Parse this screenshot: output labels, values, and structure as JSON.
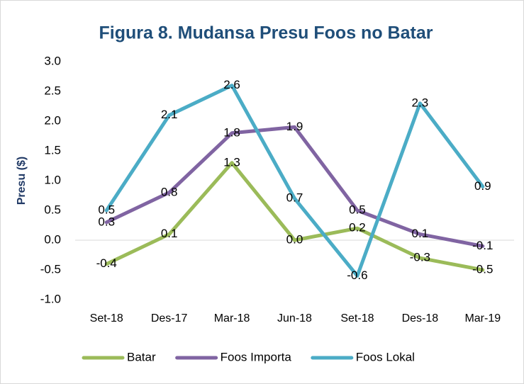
{
  "chart_data": {
    "type": "line",
    "title": "Figura 8. Mudansa Presu Foos no Batar",
    "y_label": "Presu ($)",
    "categories": [
      "Set-18",
      "Des-17",
      "Mar-18",
      "Jun-18",
      "Set-18",
      "Des-18",
      "Mar-19"
    ],
    "series": [
      {
        "name": "Batar",
        "color": "#9bbb59",
        "values": [
          -0.4,
          0.1,
          1.3,
          0,
          0.2,
          -0.3,
          -0.5
        ],
        "value_labels": [
          "-0.4",
          "0.1",
          "1.3",
          "0.0",
          "0.2",
          "-0.3",
          "-0.5"
        ]
      },
      {
        "name": "Foos Importa",
        "color": "#8064a2",
        "values": [
          0.3,
          0.8,
          1.8,
          1.9,
          0.5,
          0.1,
          -0.1
        ],
        "value_labels": [
          "0.3",
          "0.8",
          "1.8",
          "1.9",
          "0.5",
          "0.1",
          "-0.1"
        ]
      },
      {
        "name": "Foos Lokal",
        "color": "#4bacc6",
        "values": [
          0.5,
          2.1,
          2.6,
          0.7,
          -0.6,
          2.3,
          0.9
        ],
        "value_labels": [
          "0.5",
          "2.1",
          "2.6",
          "0.7",
          "-0.6",
          "2.3",
          "0.9"
        ]
      }
    ],
    "ylim": [
      -1,
      3
    ],
    "yticks": [
      {
        "value": -1,
        "label": "-1.0"
      },
      -0.5,
      {
        "value": 0,
        "label": "0.0"
      },
      0.5,
      {
        "value": 1,
        "label": "1.0"
      },
      1.5,
      {
        "value": 2,
        "label": "2.0"
      },
      2.5,
      {
        "value": 3,
        "label": "3.0"
      }
    ],
    "legend": "bottom"
  }
}
